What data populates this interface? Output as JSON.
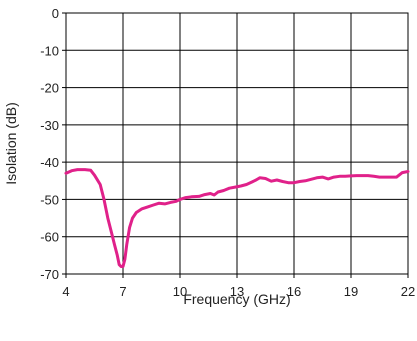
{
  "chart_data": {
    "type": "line",
    "xlabel": "Frequency (GHz)",
    "ylabel": "Isolation (dB)",
    "xlim": [
      4,
      22
    ],
    "ylim": [
      -70,
      0
    ],
    "xticks": [
      4,
      7,
      10,
      13,
      16,
      19,
      22
    ],
    "yticks": [
      0,
      -10,
      -20,
      -30,
      -40,
      -50,
      -60,
      -70
    ],
    "xtick_labels": [
      "4",
      "7",
      "10",
      "13",
      "16",
      "19",
      "22"
    ],
    "ytick_labels": [
      "0",
      "-10",
      "-20",
      "-30",
      "-40",
      "-50",
      "-60",
      "-70"
    ],
    "grid": true,
    "series": [
      {
        "color": "#e0218a",
        "x": [
          4.0,
          4.3,
          4.6,
          5.0,
          5.3,
          5.5,
          5.8,
          6.0,
          6.2,
          6.4,
          6.55,
          6.7,
          6.8,
          6.9,
          7.0,
          7.1,
          7.2,
          7.35,
          7.5,
          7.7,
          8.0,
          8.3,
          8.6,
          8.9,
          9.2,
          9.5,
          9.8,
          10.0,
          10.3,
          10.6,
          11.0,
          11.3,
          11.6,
          11.8,
          12.0,
          12.3,
          12.6,
          12.9,
          13.2,
          13.5,
          13.8,
          14.0,
          14.2,
          14.5,
          14.8,
          15.1,
          15.4,
          15.7,
          16.0,
          16.3,
          16.6,
          16.9,
          17.2,
          17.5,
          17.8,
          18.1,
          18.4,
          18.7,
          19.0,
          19.3,
          19.6,
          19.9,
          20.2,
          20.5,
          20.8,
          21.1,
          21.4,
          21.7,
          22.0
        ],
        "y": [
          -43,
          -42.3,
          -42,
          -42,
          -42.2,
          -43.5,
          -46,
          -50,
          -55,
          -59,
          -62,
          -65,
          -67.5,
          -68,
          -68,
          -66,
          -62,
          -57.5,
          -55,
          -53.5,
          -52.5,
          -52,
          -51.5,
          -51,
          -51.2,
          -50.8,
          -50.5,
          -50,
          -49.5,
          -49.3,
          -49.2,
          -48.7,
          -48.4,
          -48.8,
          -48.0,
          -47.6,
          -47.0,
          -46.7,
          -46.4,
          -46.0,
          -45.3,
          -44.8,
          -44.2,
          -44.4,
          -45.1,
          -44.8,
          -45.2,
          -45.5,
          -45.5,
          -45.2,
          -45.0,
          -44.6,
          -44.2,
          -44.0,
          -44.5,
          -44.0,
          -43.8,
          -43.8,
          -43.7,
          -43.6,
          -43.6,
          -43.6,
          -43.8,
          -44.0,
          -44.0,
          -44.0,
          -44.0,
          -42.8,
          -42.5
        ]
      }
    ]
  }
}
